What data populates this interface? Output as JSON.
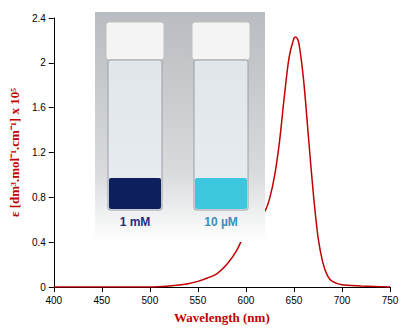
{
  "chart_data": {
    "type": "line",
    "x_label": "Wavelength (nm)",
    "y_label": "ε [dm³.mol⁻¹.cm⁻¹] x 10⁵",
    "x": [
      400,
      450,
      500,
      520,
      540,
      550,
      560,
      570,
      580,
      590,
      600,
      605,
      610,
      615,
      620,
      625,
      630,
      635,
      640,
      645,
      650,
      652,
      655,
      660,
      665,
      670,
      675,
      680,
      685,
      690,
      700,
      720,
      750
    ],
    "values": [
      0,
      0,
      0,
      0.01,
      0.03,
      0.05,
      0.08,
      0.12,
      0.2,
      0.32,
      0.5,
      0.58,
      0.62,
      0.64,
      0.68,
      0.8,
      1.0,
      1.3,
      1.7,
      2.05,
      2.22,
      2.23,
      2.18,
      1.85,
      1.35,
      0.85,
      0.45,
      0.22,
      0.1,
      0.05,
      0.02,
      0.01,
      0
    ],
    "color": "#c00000",
    "xlim": [
      400,
      750
    ],
    "xticks": [
      400,
      450,
      500,
      550,
      600,
      650,
      700,
      750
    ],
    "ylim": [
      0,
      2.4
    ],
    "yticks": [
      0,
      0.4,
      0.8,
      1.2,
      1.6,
      2,
      2.4
    ],
    "grid": false,
    "annotations": [
      "1 mM",
      "10 µM"
    ]
  }
}
